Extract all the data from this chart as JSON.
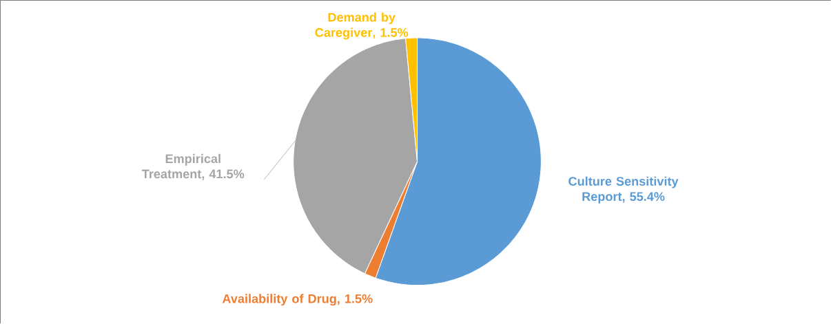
{
  "chart_data": {
    "type": "pie",
    "categories": [
      "Culture Sensitivity Report",
      "Availability of Drug",
      "Empirical Treatment",
      "Demand by Caregiver"
    ],
    "values": [
      55.4,
      1.5,
      41.5,
      1.5
    ],
    "colors": [
      "#5b9bd5",
      "#ed7d31",
      "#a5a5a5",
      "#ffc000"
    ],
    "value_labels": [
      ", 55.4%",
      ", 1.5%",
      ", 41.5%",
      ", 1.5%"
    ]
  }
}
